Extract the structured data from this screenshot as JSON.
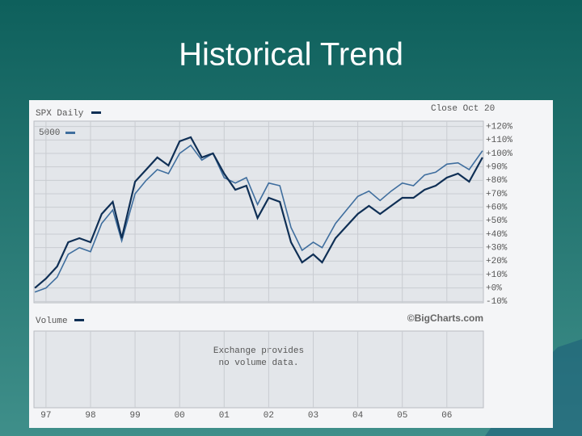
{
  "slide_title": "Historical Trend",
  "chart_data": {
    "type": "line",
    "close_label": "Close Oct 20",
    "source": "©BigCharts.com",
    "volume_label": "Volume",
    "volume_note": [
      "Exchange provides",
      "no volume data."
    ],
    "xlim": [
      1996.73,
      2006.82
    ],
    "xticks": [
      {
        "value": 1997,
        "label": "97"
      },
      {
        "value": 1998,
        "label": "98"
      },
      {
        "value": 1999,
        "label": "99"
      },
      {
        "value": 2000,
        "label": "00"
      },
      {
        "value": 2001,
        "label": "01"
      },
      {
        "value": 2002,
        "label": "02"
      },
      {
        "value": 2003,
        "label": "03"
      },
      {
        "value": 2004,
        "label": "04"
      },
      {
        "value": 2005,
        "label": "05"
      },
      {
        "value": 2006,
        "label": "06"
      }
    ],
    "ylim": [
      -11,
      124
    ],
    "yticks": [
      {
        "value": 120,
        "label": "+120%"
      },
      {
        "value": 110,
        "label": "+110%"
      },
      {
        "value": 100,
        "label": "+100%"
      },
      {
        "value": 90,
        "label": "+90%"
      },
      {
        "value": 80,
        "label": "+80%"
      },
      {
        "value": 70,
        "label": "+70%"
      },
      {
        "value": 60,
        "label": "+60%"
      },
      {
        "value": 50,
        "label": "+50%"
      },
      {
        "value": 40,
        "label": "+40%"
      },
      {
        "value": 30,
        "label": "+30%"
      },
      {
        "value": 20,
        "label": "+20%"
      },
      {
        "value": 10,
        "label": "+10%"
      },
      {
        "value": 0,
        "label": "+0%"
      },
      {
        "value": -10,
        "label": "-10%"
      }
    ],
    "grid": true,
    "x": [
      1996.75,
      1997,
      1997.25,
      1997.5,
      1997.75,
      1998,
      1998.25,
      1998.5,
      1998.7,
      1999,
      1999.25,
      1999.5,
      1999.75,
      2000,
      2000.25,
      2000.5,
      2000.75,
      2001,
      2001.25,
      2001.5,
      2001.75,
      2002,
      2002.25,
      2002.5,
      2002.75,
      2003,
      2003.2,
      2003.5,
      2003.75,
      2004,
      2004.25,
      2004.5,
      2004.75,
      2005,
      2005.25,
      2005.5,
      2005.75,
      2006,
      2006.25,
      2006.5,
      2006.8
    ],
    "series": [
      {
        "name": "SPX Daily",
        "color": "#0f2f55",
        "values": [
          0,
          7,
          16,
          34,
          37,
          34,
          55,
          64,
          37,
          79,
          88,
          97,
          91,
          109,
          112,
          97,
          100,
          85,
          73,
          76,
          52,
          67,
          64,
          34,
          19,
          25,
          19,
          37,
          46,
          55,
          61,
          55,
          61,
          67,
          67,
          73,
          76,
          82,
          85,
          79,
          97
        ]
      },
      {
        "name": "5000",
        "color": "#3f6e9e",
        "values": [
          -3,
          0,
          8,
          25,
          30,
          27,
          48,
          58,
          35,
          70,
          80,
          88,
          85,
          100,
          106,
          95,
          100,
          82,
          78,
          82,
          62,
          78,
          76,
          45,
          28,
          34,
          30,
          48,
          58,
          68,
          72,
          65,
          72,
          78,
          76,
          84,
          86,
          92,
          93,
          88,
          102
        ]
      }
    ]
  }
}
